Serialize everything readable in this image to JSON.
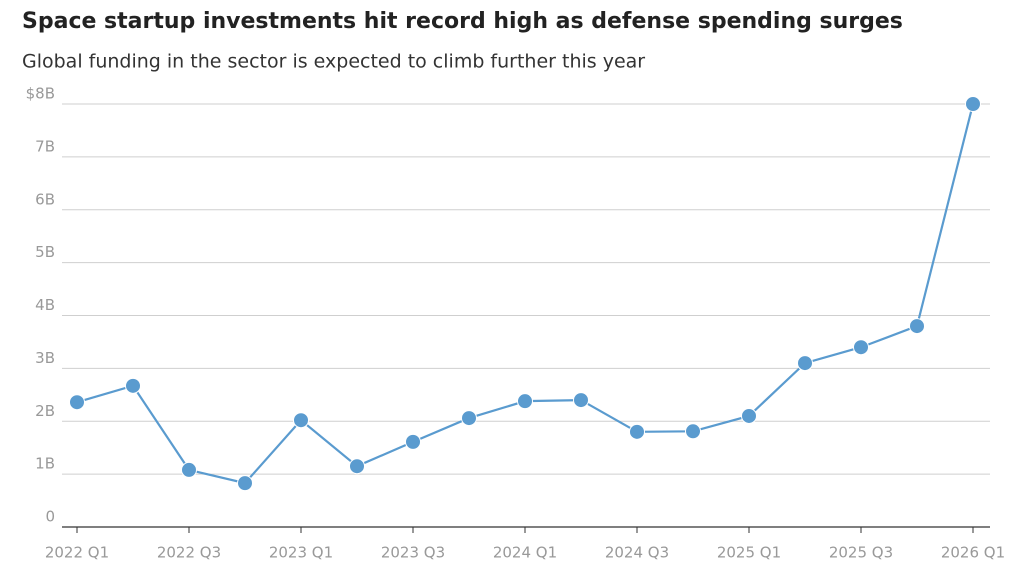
{
  "chart_data": {
    "type": "line",
    "title": "Space startup investments hit record high as defense spending surges",
    "subtitle": "Global funding in the sector is expected to climb further this year",
    "categories": [
      "2022 Q1",
      null,
      "2022 Q3",
      null,
      "2023 Q1",
      null,
      "2023 Q3",
      null,
      "2024 Q1",
      null,
      "2024 Q3",
      null,
      "2025 Q1",
      null,
      "2025 Q3",
      null,
      "2026 Q1"
    ],
    "series": [
      {
        "color": "#5a9bcf",
        "values": [
          2.36,
          2.67,
          1.08,
          0.83,
          2.02,
          1.15,
          1.61,
          2.06,
          2.38,
          2.4,
          1.8,
          1.81,
          2.1,
          3.1,
          3.4,
          3.8,
          8.0
        ]
      }
    ],
    "ylim": [
      0,
      8
    ],
    "yticks": [
      0,
      {
        "value": 1,
        "label": "1B"
      },
      {
        "value": 2,
        "label": "2B"
      },
      {
        "value": 3,
        "label": "3B"
      },
      {
        "value": 4,
        "label": "4B"
      },
      {
        "value": 5,
        "label": "5B"
      },
      {
        "value": 6,
        "label": "6B"
      },
      {
        "value": 7,
        "label": "7B"
      },
      {
        "value": 8,
        "label": "$8B"
      }
    ],
    "grid": true
  }
}
